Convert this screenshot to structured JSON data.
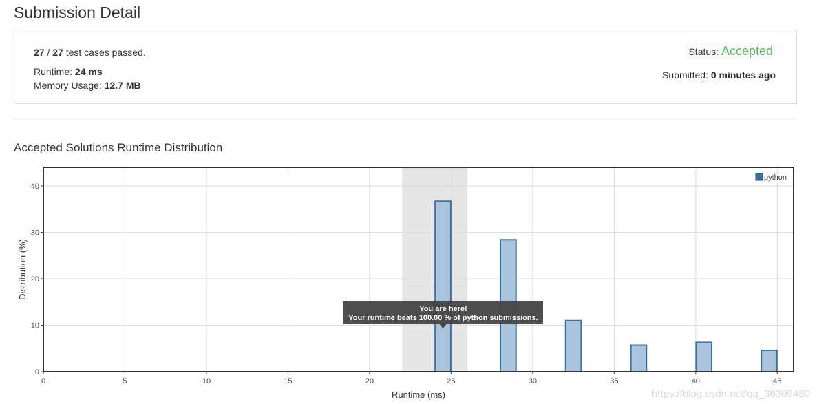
{
  "page": {
    "title": "Submission Detail",
    "section_title": "Accepted Solutions Runtime Distribution",
    "watermark": "https://blog.csdn.net/qq_36309480"
  },
  "summary": {
    "passed": "27",
    "separator": " / ",
    "total": "27",
    "passed_suffix": " test cases passed.",
    "runtime_label": "Runtime: ",
    "runtime_value": "24 ms",
    "memory_label": "Memory Usage: ",
    "memory_value": "12.7 MB",
    "status_label": "Status: ",
    "status_value": "Accepted",
    "submitted_label": "Submitted: ",
    "submitted_value": "0 minutes ago"
  },
  "colors": {
    "accepted": "#5cb85c",
    "bar_fill": "#a9c4dc",
    "bar_stroke": "#3a6f9f",
    "legend_swatch": "#3a6f9f",
    "highlight": "#e6e6e6",
    "tooltip_bg": "#444444"
  },
  "tooltip": {
    "line1": "You are here!",
    "line2": "Your runtime beats 100.00 % of python submissions."
  },
  "chart_data": {
    "type": "bar",
    "xlabel": "Runtime (ms)",
    "ylabel": "Distribution (%)",
    "xlim": [
      0,
      46
    ],
    "ylim": [
      0,
      44
    ],
    "xticks": [
      0,
      5,
      10,
      15,
      20,
      25,
      30,
      35,
      40,
      45
    ],
    "yticks": [
      0,
      10,
      20,
      30,
      40
    ],
    "grid": true,
    "legend_position": "top-right",
    "highlight_range": [
      22,
      26
    ],
    "series": [
      {
        "name": "python",
        "x": [
          24.5,
          28.5,
          32.5,
          36.5,
          40.5,
          44.5
        ],
        "values": [
          36.7,
          28.4,
          11.0,
          5.7,
          6.3,
          4.6
        ]
      }
    ]
  }
}
